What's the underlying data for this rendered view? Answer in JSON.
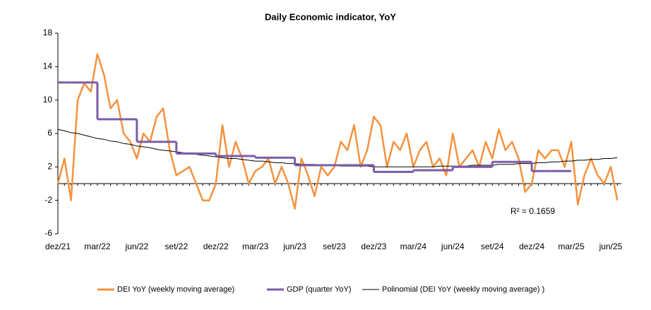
{
  "chart_data": {
    "type": "line",
    "title": "Daily Economic indicator, YoY",
    "categories": [
      "dez/21",
      null,
      null,
      null,
      null,
      null,
      "mar/22",
      null,
      null,
      null,
      null,
      null,
      "jun/22",
      null,
      null,
      null,
      null,
      null,
      "set/22",
      null,
      null,
      null,
      null,
      null,
      "dez/22",
      null,
      null,
      null,
      null,
      null,
      "mar/23",
      null,
      null,
      null,
      null,
      null,
      "jun/23",
      null,
      null,
      null,
      null,
      null,
      "set/23",
      null,
      null,
      null,
      null,
      null,
      "dez/23",
      null,
      null,
      null,
      null,
      null,
      "mar/24",
      null,
      null,
      null,
      null,
      null,
      "jun/24",
      null,
      null,
      null,
      null,
      null,
      "set/24",
      null,
      null,
      null,
      null,
      null,
      "dez/24",
      null,
      null,
      null,
      null,
      null,
      "mar/25",
      null,
      null,
      null,
      null,
      null,
      "jun/25",
      null
    ],
    "series": [
      {
        "name": "DEI YoY (weekly moving average)",
        "color": "#f5923e",
        "style": "line",
        "values": [
          0,
          3,
          -2,
          10,
          12,
          11,
          15.5,
          13,
          9,
          10,
          6,
          5,
          3,
          6,
          5,
          8,
          9,
          4,
          1,
          1.5,
          2,
          0,
          -2,
          -2,
          0,
          7,
          2,
          5,
          3,
          0,
          1.5,
          2,
          3,
          0,
          2,
          0,
          -3,
          3,
          1,
          -1.5,
          2,
          1,
          2,
          5,
          4,
          7,
          2,
          4,
          8,
          7,
          2,
          5,
          4,
          6,
          2,
          4,
          5,
          2,
          3,
          1,
          6,
          2,
          3,
          4,
          2,
          5,
          3,
          6.5,
          4,
          5,
          3,
          -1,
          0,
          4,
          3,
          4,
          4,
          2,
          5,
          -2.5,
          1,
          3,
          1,
          0,
          2,
          -2
        ]
      },
      {
        "name": "GDP (quarter YoY)",
        "color": "#7b5ba8",
        "style": "step",
        "values": [
          12.1,
          12.1,
          12.1,
          12.1,
          12.1,
          12.1,
          7.7,
          7.7,
          7.7,
          7.7,
          7.7,
          7.7,
          5,
          5,
          5,
          5,
          5,
          5,
          3.6,
          3.6,
          3.6,
          3.6,
          3.6,
          3.6,
          3.3,
          3.3,
          3.3,
          3.3,
          3.3,
          3.3,
          3.1,
          3.1,
          3.1,
          3.1,
          3.1,
          3.1,
          2.2,
          2.2,
          2.2,
          2.2,
          2.2,
          2.2,
          2.2,
          2.2,
          2.2,
          2.2,
          2.2,
          2.2,
          1.4,
          1.4,
          1.4,
          1.4,
          1.4,
          1.4,
          1.6,
          1.6,
          1.6,
          1.6,
          1.6,
          1.6,
          2,
          2,
          2,
          2,
          2,
          2,
          2.6,
          2.6,
          2.6,
          2.6,
          2.6,
          2.6,
          1.5,
          1.5,
          1.5,
          1.5,
          1.5,
          1.5,
          null,
          null,
          null,
          null,
          null,
          null,
          null,
          null
        ]
      },
      {
        "name": "Polinomial (DEI YoY (weekly moving average) )",
        "color": "#000000",
        "style": "thin",
        "values": [
          6.5,
          6.3,
          6.1,
          6.0,
          5.8,
          5.6,
          5.4,
          5.3,
          5.1,
          5.0,
          4.8,
          4.7,
          4.5,
          4.4,
          4.3,
          4.1,
          4.0,
          3.9,
          3.8,
          3.7,
          3.6,
          3.5,
          3.4,
          3.3,
          3.2,
          3.1,
          3.0,
          3.0,
          2.9,
          2.8,
          2.7,
          2.7,
          2.6,
          2.5,
          2.5,
          2.4,
          2.4,
          2.3,
          2.3,
          2.3,
          2.2,
          2.2,
          2.2,
          2.1,
          2.1,
          2.1,
          2.1,
          2.1,
          2.0,
          2.0,
          2.0,
          2.0,
          2.0,
          2.0,
          2.0,
          2.0,
          2.0,
          2.0,
          2.1,
          2.1,
          2.1,
          2.1,
          2.1,
          2.2,
          2.2,
          2.2,
          2.2,
          2.3,
          2.3,
          2.3,
          2.4,
          2.4,
          2.4,
          2.5,
          2.5,
          2.6,
          2.6,
          2.7,
          2.7,
          2.8,
          2.8,
          2.9,
          2.9,
          3.0,
          3.0,
          3.1
        ]
      }
    ],
    "annotation": "R² = 0.1659",
    "ylim": [
      -6,
      18
    ],
    "yticks": [
      -6,
      -2,
      2,
      6,
      10,
      14,
      18
    ],
    "grid": false,
    "legend": "bottom"
  }
}
